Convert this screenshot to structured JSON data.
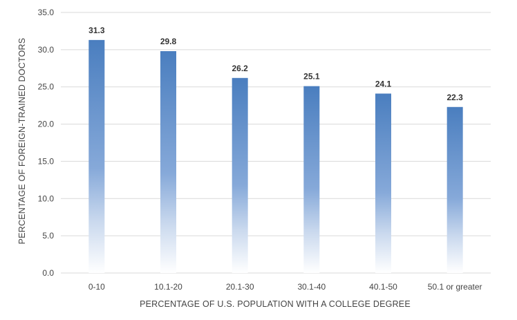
{
  "chart_data": {
    "type": "bar",
    "title": "",
    "xlabel": "PERCENTAGE OF U.S. POPULATION WITH A COLLEGE DEGREE",
    "ylabel": "PERCENTAGE OF FOREIGN-TRAINED DOCTORS",
    "categories": [
      "0-10",
      "10.1-20",
      "20.1-30",
      "30.1-40",
      "40.1-50",
      "50.1 or greater"
    ],
    "values": [
      31.3,
      29.8,
      26.2,
      25.1,
      24.1,
      22.3
    ],
    "data_labels": [
      "31.3",
      "29.8",
      "26.2",
      "25.1",
      "24.1",
      "22.3"
    ],
    "ylim": [
      0,
      35
    ],
    "yticks": [
      0,
      5,
      10,
      15,
      20,
      25,
      30,
      35
    ],
    "ytick_labels": [
      "0.0",
      "5.0",
      "10.0",
      "15.0",
      "20.0",
      "25.0",
      "30.0",
      "35.0"
    ],
    "grid": true,
    "legend": "none",
    "colors": {
      "bar_top": "#4a7ebf",
      "bar_mid": "#7ea3d6",
      "bar_bottom": "#ffffff",
      "gridline": "#d9d9d9"
    }
  }
}
